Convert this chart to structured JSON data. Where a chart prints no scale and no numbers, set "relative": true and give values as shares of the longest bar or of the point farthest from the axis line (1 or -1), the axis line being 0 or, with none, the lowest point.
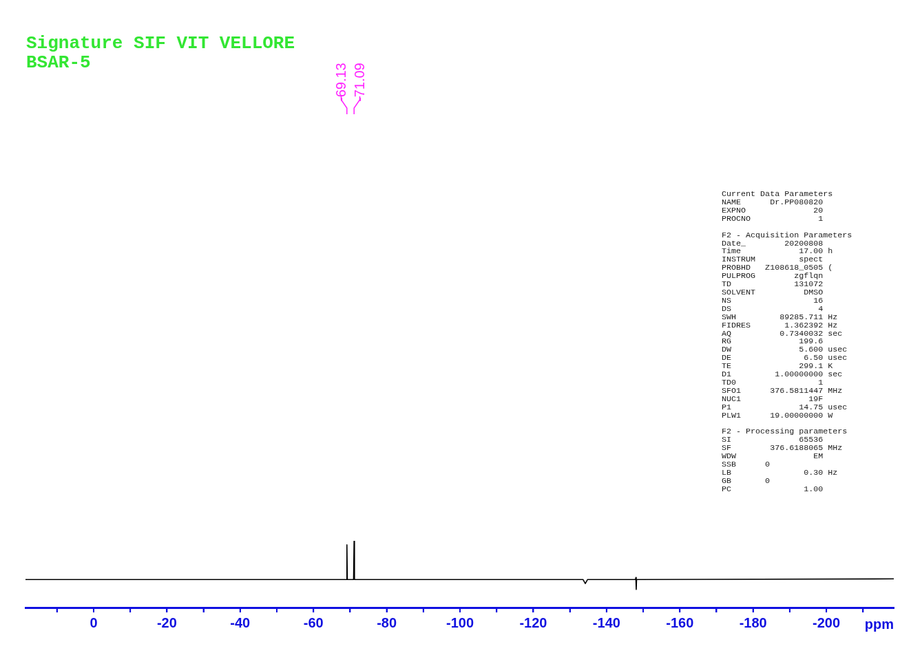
{
  "chart_data": {
    "type": "line",
    "title": "Signature SIF VIT VELLORE",
    "subtitle": "BSAR-5",
    "xlabel": "ppm",
    "relative": true,
    "x": [
      18.6,
      -69.0,
      -69.13,
      -69.25,
      -70.95,
      -71.09,
      -71.2,
      -133.6,
      -134.2,
      -134.8,
      -147.9,
      -148.0,
      -148.1,
      -148.2,
      -218.4
    ],
    "series": [
      {
        "color": "#000000",
        "values": [
          0.42,
          0.42,
          0.94,
          0.42,
          0.42,
          1.0,
          0.42,
          0.42,
          0.36,
          0.42,
          0.42,
          0.45,
          0.27,
          0.42,
          0.43
        ]
      }
    ],
    "xlim": [
      18.6,
      -218.4
    ],
    "xticks": [
      {
        "value": 10,
        "label": null
      },
      0,
      {
        "value": -10,
        "label": null
      },
      -20,
      {
        "value": -30,
        "label": null
      },
      -40,
      {
        "value": -50,
        "label": null
      },
      -60,
      {
        "value": -70,
        "label": null
      },
      -80,
      {
        "value": -90,
        "label": null
      },
      -100,
      {
        "value": -110,
        "label": null
      },
      -120,
      {
        "value": -130,
        "label": null
      },
      -140,
      {
        "value": -150,
        "label": null
      },
      -160,
      {
        "value": -170,
        "label": null
      },
      -180,
      {
        "value": -190,
        "label": null
      },
      -200,
      {
        "value": -210,
        "label": null
      }
    ],
    "annotations": [
      {
        "text": "-69.13",
        "x": -69.13
      },
      {
        "text": "-71.09",
        "x": -71.09
      },
      "Current Data Parameters\nNAME      Dr.PP080820\nEXPNO              20\nPROCNO              1",
      "F2 - Acquisition Parameters\nDate_        20200808\nTime            17.00 h\nINSTRUM         spect\nPROBHD   Z108618_0505 (\nPULPROG        zgflqn\nTD             131072\nSOLVENT          DMSO\nNS                 16\nDS                  4\nSWH         89285.711 Hz\nFIDRES       1.362392 Hz\nAQ          0.7340032 sec\nRG              199.6\nDW              5.600 usec\nDE               6.50 usec\nTE              299.1 K\nD1         1.00000000 sec\nTD0                 1\nSFO1      376.5811447 MHz\nNUC1              19F\nP1              14.75 usec\nPLW1      19.00000000 W",
      "F2 - Processing parameters\nSI              65536\nSF        376.6188065 MHz\nWDW                EM\nSSB      0\nLB               0.30 Hz\nGB       0\nPC               1.00"
    ]
  }
}
